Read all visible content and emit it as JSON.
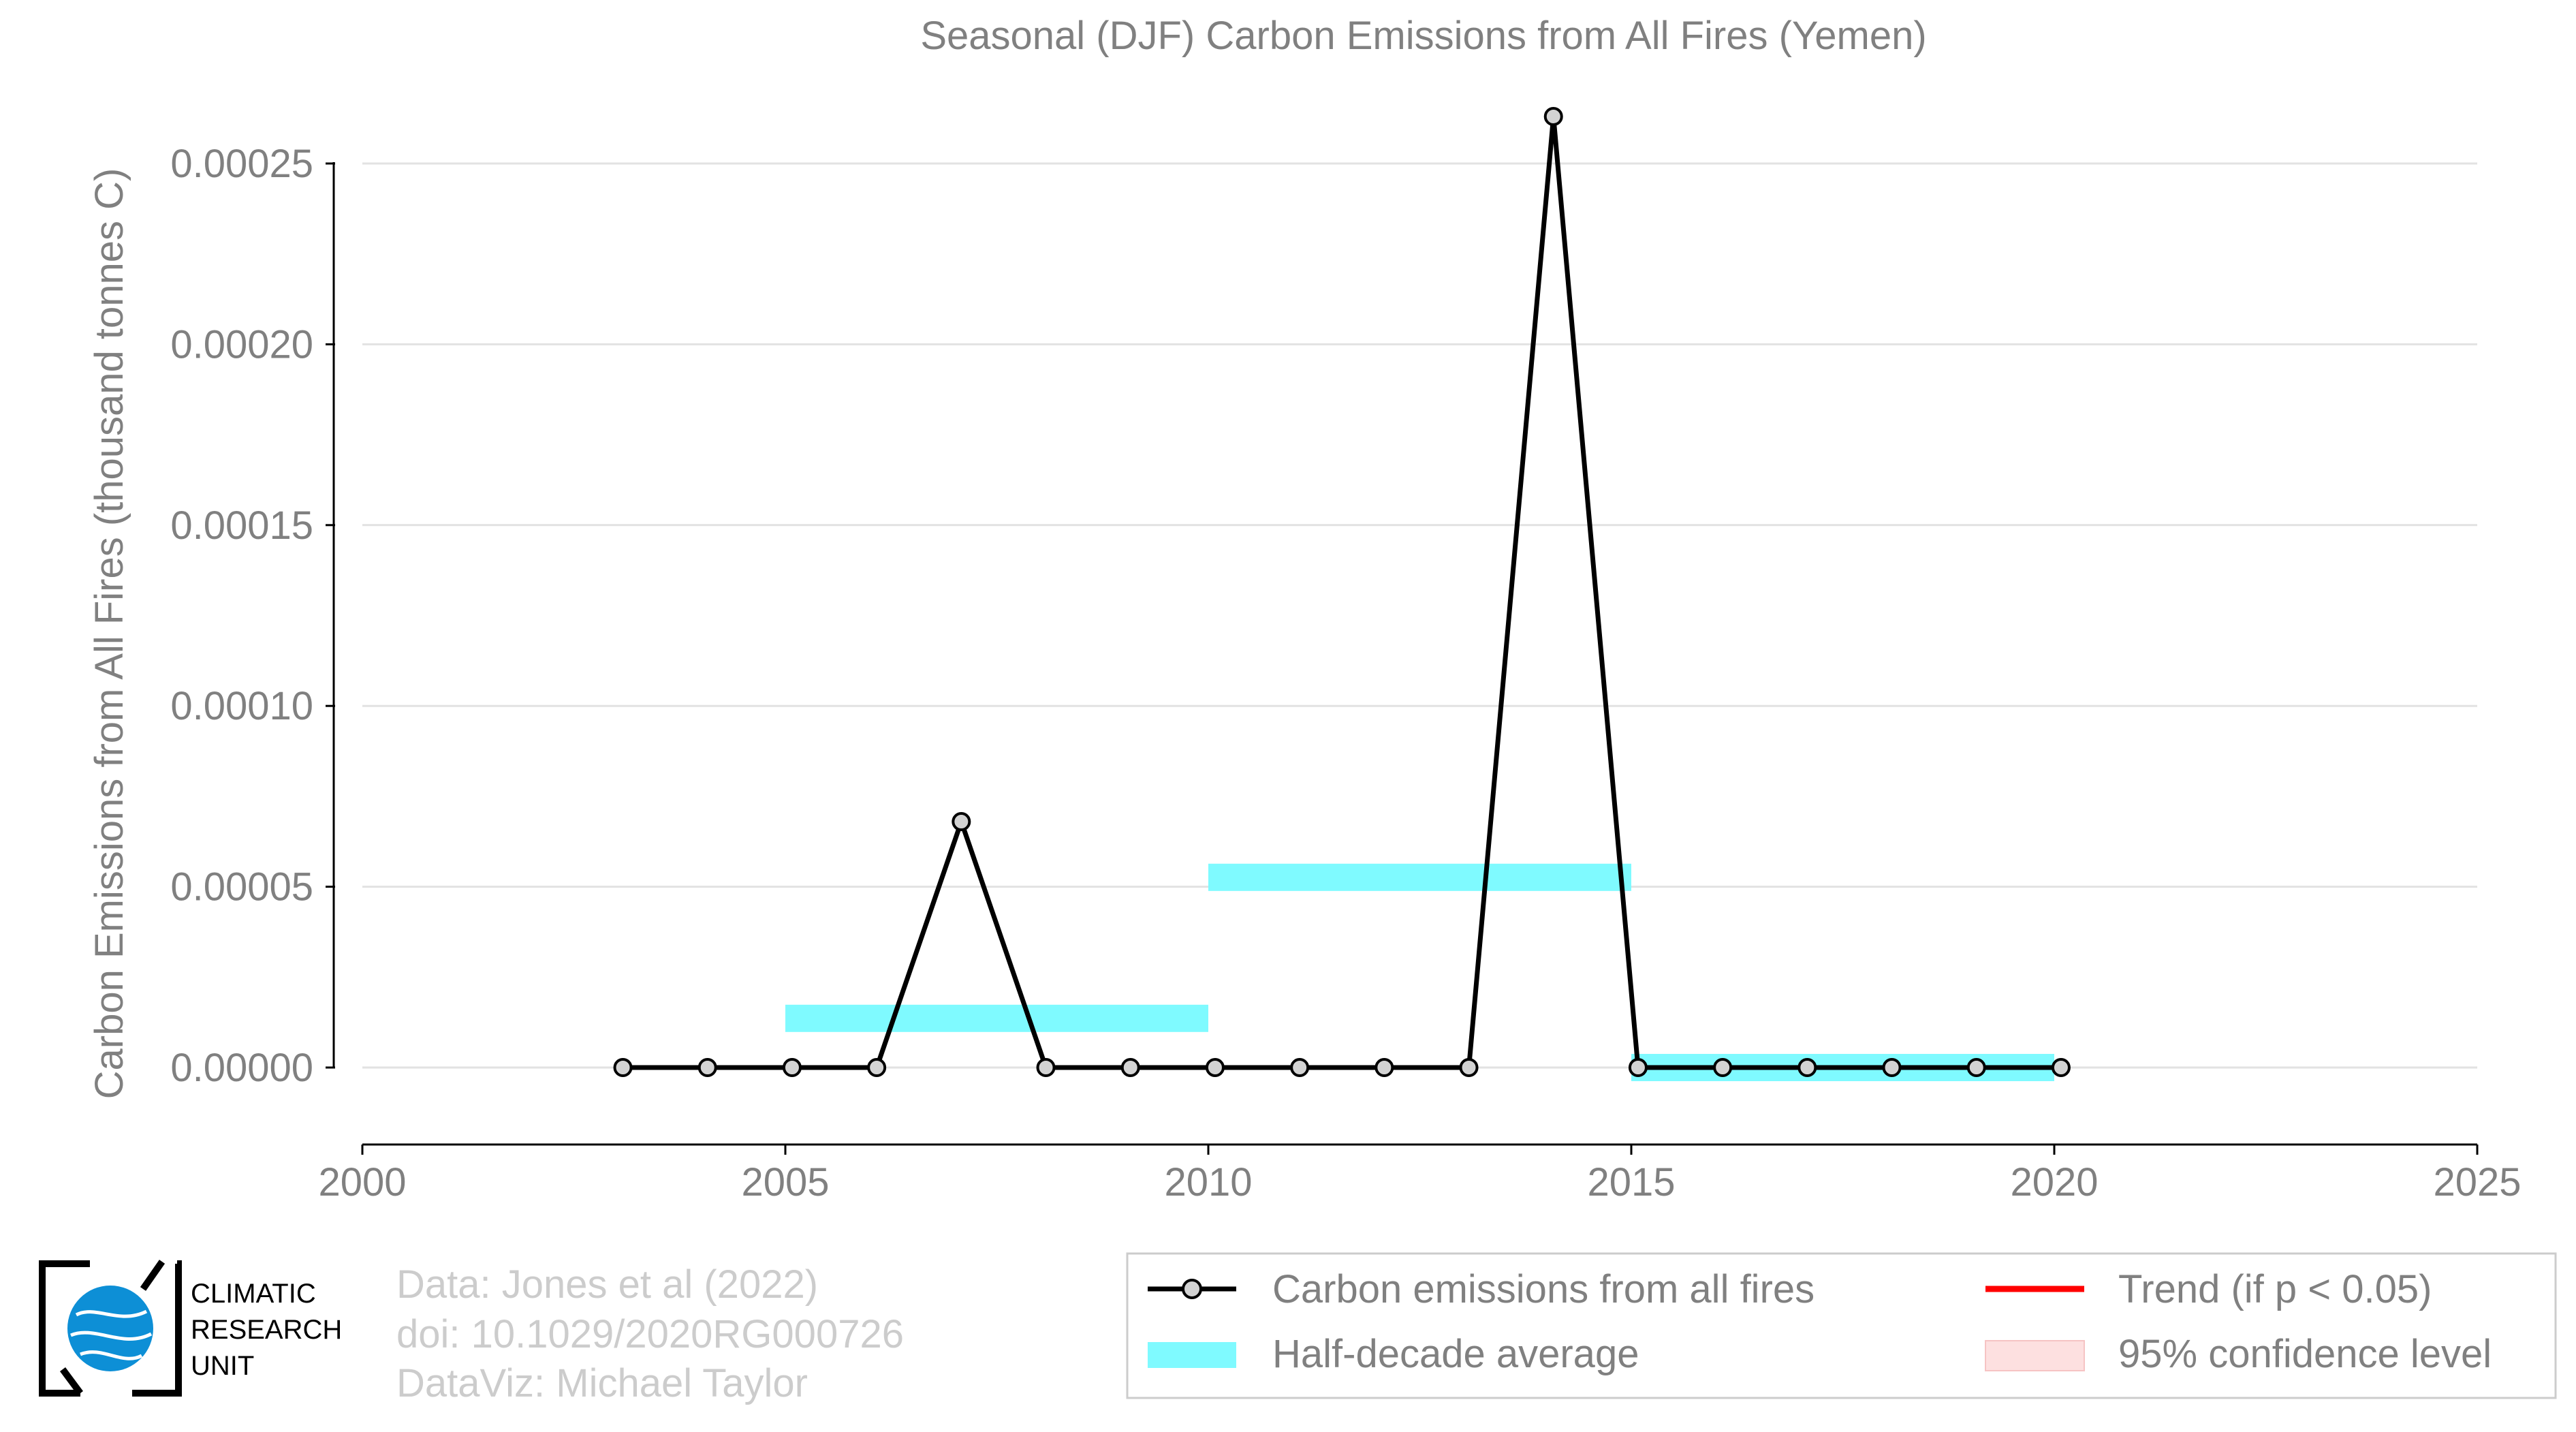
{
  "chart_data": {
    "type": "line",
    "title": "Seasonal (DJF) Carbon Emissions from All Fires (Yemen)",
    "xlabel": "",
    "ylabel": "Carbon Emissions from All Fires (thousand tonnes C)",
    "xlim": [
      2000,
      2025
    ],
    "ylim": [
      -2e-05,
      0.00026
    ],
    "x_ticks": [
      2000,
      2005,
      2010,
      2015,
      2020,
      2025
    ],
    "y_ticks": [
      0,
      5e-05,
      0.0001,
      0.00015,
      0.0002,
      0.00025
    ],
    "y_tick_labels": [
      "0.00000",
      "0.00005",
      "0.00010",
      "0.00015",
      "0.00020",
      "0.00025"
    ],
    "grid": true,
    "legend_position": "bottom-right",
    "series": [
      {
        "name": "Carbon emissions from all fires",
        "color": "#000000",
        "marker_color": "#d3d3d3",
        "x": [
          2003,
          2004,
          2005,
          2006,
          2007,
          2008,
          2009,
          2010,
          2011,
          2012,
          2013,
          2014,
          2015,
          2016,
          2017,
          2018,
          2019,
          2020
        ],
        "y": [
          0,
          0,
          0,
          0,
          6.8e-05,
          0,
          0,
          0,
          0,
          0,
          0,
          0.000263,
          0,
          0,
          0,
          0,
          0,
          0
        ]
      }
    ],
    "half_decade_average": {
      "name": "Half-decade average",
      "color": "#7ffaff",
      "segments": [
        {
          "x_start": 2005,
          "x_end": 2010,
          "y": 1.36e-05
        },
        {
          "x_start": 2010,
          "x_end": 2015,
          "y": 5.26e-05
        },
        {
          "x_start": 2015,
          "x_end": 2020,
          "y": 0
        }
      ]
    },
    "legend": [
      {
        "label": "Carbon emissions from all fires",
        "kind": "line-marker",
        "color": "#000000"
      },
      {
        "label": "Trend (if p < 0.05)",
        "kind": "line",
        "color": "#ff0000"
      },
      {
        "label": "Half-decade average",
        "kind": "band",
        "color": "#7ffaff"
      },
      {
        "label": "95% confidence level",
        "kind": "band",
        "color": "#fde0e0"
      }
    ]
  },
  "credits": {
    "line1": "Data: Jones et al (2022)",
    "line2": "doi: 10.1029/2020RG000726",
    "line3": "DataViz: Michael Taylor"
  },
  "logo": {
    "line1": "CLIMATIC",
    "line2": "RESEARCH",
    "line3": "UNIT"
  }
}
